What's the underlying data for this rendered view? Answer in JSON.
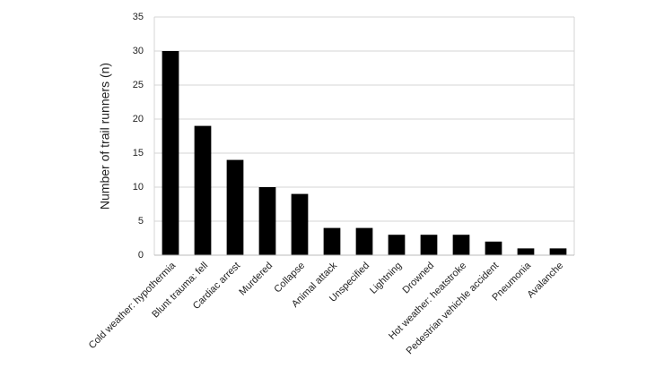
{
  "chart_data": {
    "type": "bar",
    "y_label": "Number of trail runners (n)",
    "categories": [
      "Cold weather: hypothermia",
      "Blunt trauma: fell",
      "Cardiac arrest",
      "Murdered",
      "Collapse",
      "Animal attack",
      "Unspecified",
      "Lightning",
      "Drowned",
      "Hot weather: heatstroke",
      "Pedestrian vehichle accident",
      "Pneumonia",
      "Avalanche"
    ],
    "values": [
      30,
      19,
      14,
      10,
      9,
      4,
      4,
      3,
      3,
      3,
      2,
      1,
      1
    ],
    "color": "#000000",
    "ylim": [
      0,
      35
    ],
    "yticks": [
      0,
      5,
      10,
      15,
      20,
      25,
      30,
      35
    ],
    "grid": true
  }
}
